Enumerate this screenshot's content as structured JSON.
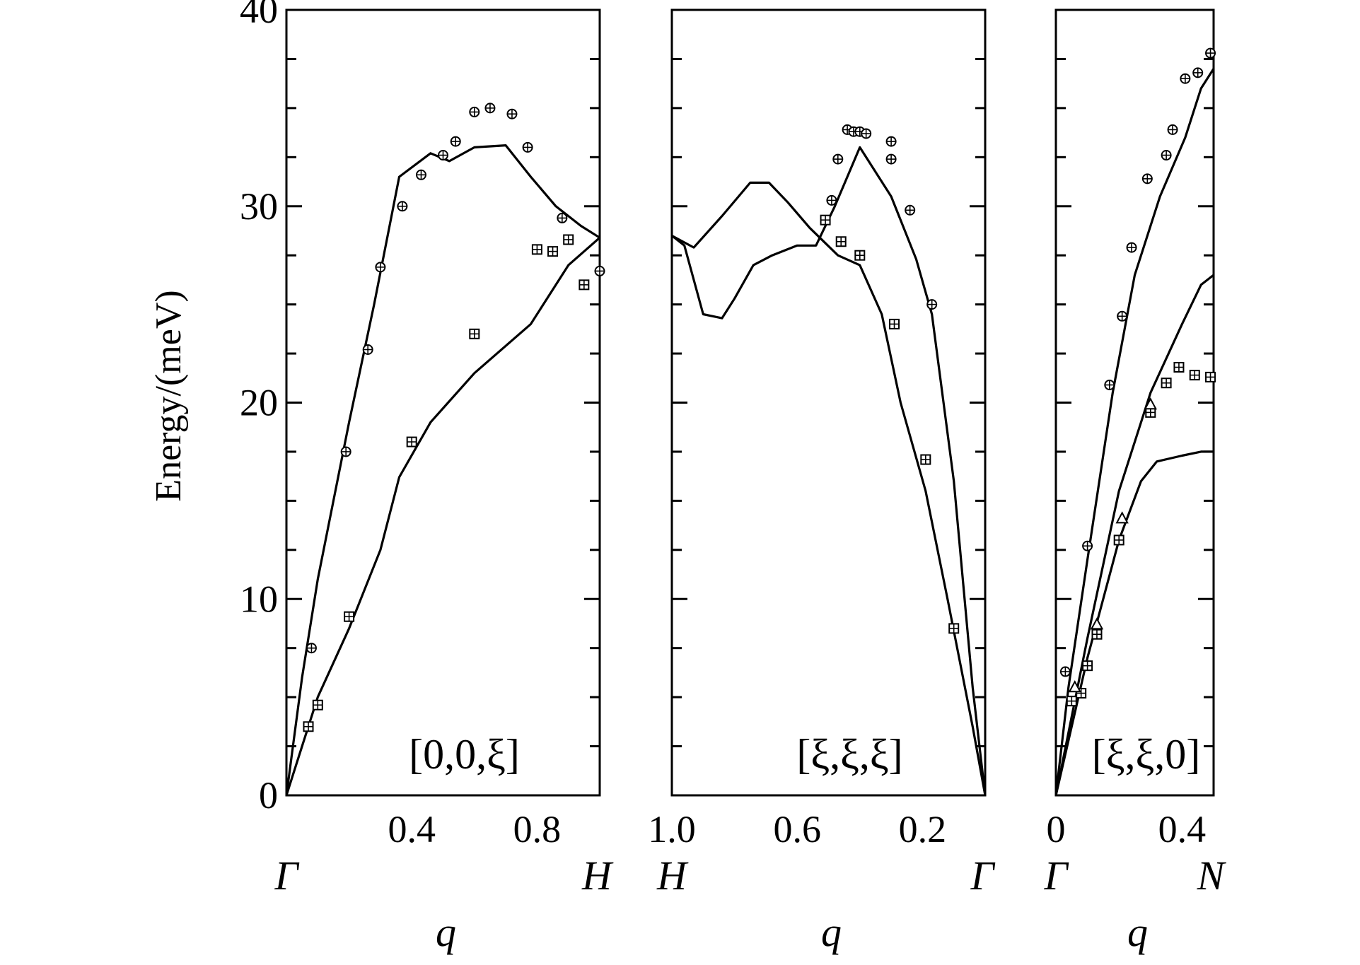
{
  "chart_data": {
    "type": "line",
    "ylabel": "Energy/(meV)",
    "ylim": [
      0,
      40
    ],
    "y_ticks": [
      "0",
      "10",
      "20",
      "30",
      "40"
    ],
    "panels": [
      {
        "direction_label": "[0,0,ξ]",
        "xlabel": "q",
        "xlim": [
          0,
          1.0
        ],
        "x_ticks": [
          "0.4",
          "0.8"
        ],
        "x_tick_values": [
          0.4,
          0.8
        ],
        "left_point": "Γ",
        "right_point": "H",
        "series": [
          {
            "name": "upper-branch",
            "x": [
              0,
              0.05,
              0.1,
              0.2,
              0.28,
              0.36,
              0.46,
              0.52,
              0.6,
              0.7,
              0.78,
              0.86,
              0.94,
              1.0
            ],
            "y": [
              0,
              6,
              11,
              19,
              25,
              31.5,
              32.7,
              32.3,
              33,
              33.1,
              31.5,
              30,
              29,
              28.4
            ]
          },
          {
            "name": "lower-branch",
            "x": [
              0,
              0.05,
              0.1,
              0.2,
              0.3,
              0.36,
              0.46,
              0.6,
              0.78,
              0.9,
              1.0
            ],
            "y": [
              0,
              2.5,
              5,
              8.5,
              12.5,
              16.2,
              19,
              21.5,
              24,
              27,
              28.4
            ]
          }
        ],
        "points": [
          {
            "name": "longitudinal-data",
            "marker": "circle-plus",
            "x": [
              0.08,
              0.19,
              0.26,
              0.3,
              0.37,
              0.43,
              0.5,
              0.54,
              0.6,
              0.65,
              0.72,
              0.77,
              0.88,
              1.0
            ],
            "y": [
              7.5,
              17.5,
              22.7,
              26.9,
              30,
              31.6,
              32.6,
              33.3,
              34.8,
              35,
              34.7,
              33,
              29.4,
              26.7
            ]
          },
          {
            "name": "transverse-data",
            "marker": "square-plus",
            "x": [
              0.07,
              0.1,
              0.2,
              0.4,
              0.6,
              0.8,
              0.85,
              0.9,
              0.95
            ],
            "y": [
              3.5,
              4.6,
              9.1,
              18,
              23.5,
              27.8,
              27.7,
              28.3,
              26
            ]
          }
        ]
      },
      {
        "direction_label": "[ξ,ξ,ξ]",
        "xlabel": "q",
        "xlim": [
          1.0,
          0.0
        ],
        "x_ticks": [
          "1.0",
          "0.6",
          "0.2"
        ],
        "x_tick_values": [
          1.0,
          0.6,
          0.2
        ],
        "left_point": "H",
        "right_point": "Γ",
        "series": [
          {
            "name": "upper-branch",
            "x": [
              1.0,
              0.93,
              0.84,
              0.75,
              0.69,
              0.63,
              0.56,
              0.47,
              0.4,
              0.33,
              0.27,
              0.19,
              0.12,
              0.04,
              0.0
            ],
            "y": [
              28.5,
              27.9,
              29.5,
              31.2,
              31.2,
              30.2,
              28.9,
              27.5,
              27,
              24.5,
              20,
              15.5,
              10,
              3.5,
              0
            ]
          },
          {
            "name": "lower-branch",
            "x": [
              1.0,
              0.96,
              0.9,
              0.84,
              0.8,
              0.74,
              0.68,
              0.6,
              0.54,
              0.48,
              0.4,
              0.3,
              0.22,
              0.17,
              0.1,
              0.04,
              0.0
            ],
            "y": [
              28.5,
              28,
              24.5,
              24.3,
              25.3,
              27,
              27.5,
              28,
              28,
              30,
              33,
              30.5,
              27.3,
              24.5,
              16,
              5.5,
              0
            ]
          }
        ],
        "points": [
          {
            "name": "longitudinal-data",
            "marker": "circle-plus",
            "x": [
              0.49,
              0.47,
              0.44,
              0.42,
              0.4,
              0.38,
              0.3,
              0.3,
              0.24,
              0.17
            ],
            "y": [
              30.3,
              32.4,
              33.9,
              33.8,
              33.8,
              33.7,
              33.3,
              32.4,
              29.8,
              25
            ]
          },
          {
            "name": "transverse-data",
            "marker": "square-plus",
            "x": [
              0.51,
              0.46,
              0.4,
              0.29,
              0.19,
              0.1
            ],
            "y": [
              29.3,
              28.2,
              27.5,
              24,
              17.1,
              8.5
            ]
          }
        ]
      },
      {
        "direction_label": "[ξ,ξ,0]",
        "xlabel": "q",
        "xlim": [
          0,
          0.5
        ],
        "x_ticks": [
          "0",
          "0.4"
        ],
        "x_tick_values": [
          0,
          0.4
        ],
        "left_point": "Γ",
        "right_point": "N",
        "series": [
          {
            "name": "upper-branch",
            "x": [
              0,
              0.04,
              0.1,
              0.18,
              0.25,
              0.33,
              0.41,
              0.46,
              0.5
            ],
            "y": [
              0,
              5.5,
              12,
              20.5,
              26.5,
              30.5,
              33.5,
              36,
              37
            ]
          },
          {
            "name": "middle-branch",
            "x": [
              0,
              0.05,
              0.1,
              0.2,
              0.3,
              0.4,
              0.46,
              0.5
            ],
            "y": [
              0,
              4,
              8,
              15.5,
              20.5,
              24,
              26,
              26.5
            ]
          },
          {
            "name": "lower-branch",
            "x": [
              0,
              0.05,
              0.1,
              0.2,
              0.27,
              0.32,
              0.4,
              0.46,
              0.5
            ],
            "y": [
              0,
              3.5,
              7,
              13,
              16,
              17,
              17.3,
              17.5,
              17.5
            ]
          }
        ],
        "points": [
          {
            "name": "longitudinal-data",
            "marker": "circle-plus",
            "x": [
              0.03,
              0.1,
              0.17,
              0.21,
              0.24,
              0.29,
              0.35,
              0.37,
              0.41,
              0.45,
              0.49
            ],
            "y": [
              6.3,
              12.7,
              20.9,
              24.4,
              27.9,
              31.4,
              32.6,
              33.9,
              36.5,
              36.8,
              37.8
            ]
          },
          {
            "name": "transverse-data",
            "marker": "square-plus",
            "x": [
              0.05,
              0.08,
              0.1,
              0.13,
              0.2,
              0.3,
              0.35,
              0.39,
              0.44,
              0.49
            ],
            "y": [
              4.8,
              5.2,
              6.6,
              8.2,
              13,
              19.5,
              21,
              21.8,
              21.4,
              21.3
            ]
          },
          {
            "name": "triangle-data",
            "marker": "triangle",
            "x": [
              0.06,
              0.13,
              0.21,
              0.3
            ],
            "y": [
              5.5,
              8.7,
              14.1,
              19.9
            ]
          }
        ]
      }
    ]
  }
}
